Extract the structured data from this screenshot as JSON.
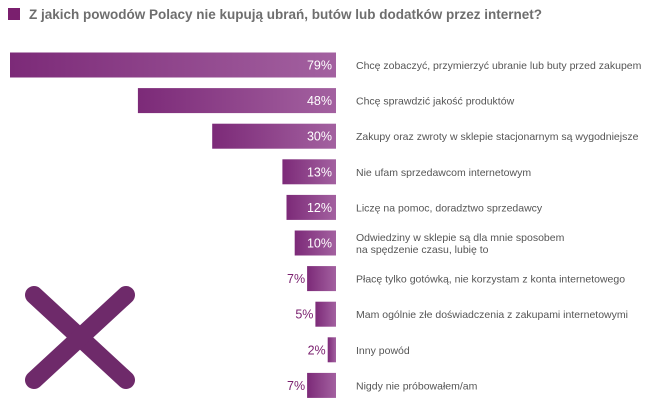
{
  "title": "Z jakich powodów Polacy nie kupują ubrań, butów lub dodatków przez internet?",
  "colors": {
    "accent": "#7a1f6e",
    "bar_dark": "#7c2a78",
    "bar_light": "#a361a0",
    "text": "#555555",
    "title": "#6e6e6e"
  },
  "decoration": {
    "cross_icon": "x-mark-icon",
    "cross_color": "#6e2a6a"
  },
  "chart_data": {
    "type": "bar",
    "orientation": "horizontal",
    "xlim": [
      0,
      79
    ],
    "grid": false,
    "categories": [
      [
        "Chcę zobaczyć, przymierzyć ubranie lub buty przed zakupem"
      ],
      [
        "Chcę sprawdzić jakość produktów"
      ],
      [
        "Zakupy oraz zwroty w sklepie stacjonarnym są wygodniejsze"
      ],
      [
        "Nie ufam sprzedawcom internetowym"
      ],
      [
        "Liczę na pomoc, doradztwo sprzedawcy"
      ],
      [
        "Odwiedziny w sklepie są dla mnie sposobem",
        "na spędzenie czasu, lubię to"
      ],
      [
        "Płacę tylko gotówką, nie korzystam z konta internetowego"
      ],
      [
        "Mam ogólnie złe doświadczenia z zakupami internetowymi"
      ],
      [
        "Inny powód"
      ],
      [
        "Nigdy nie próbowałem/am"
      ]
    ],
    "values": [
      79,
      48,
      30,
      13,
      12,
      10,
      7,
      5,
      2,
      7
    ],
    "value_labels": [
      "79%",
      "48%",
      "30%",
      "13%",
      "12%",
      "10%",
      "7%",
      "5%",
      "2%",
      "7%"
    ]
  }
}
